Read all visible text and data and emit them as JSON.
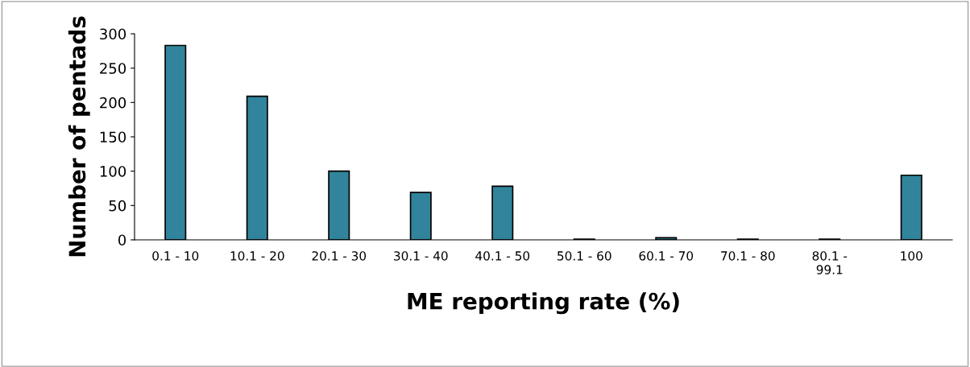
{
  "chart_data": {
    "type": "bar",
    "xlabel": "ME reporting rate (%)",
    "ylabel": "Number of pentads",
    "categories": [
      "0.1 - 10",
      "10.1 - 20",
      "20.1 - 30",
      "30.1 - 40",
      "40.1 - 50",
      "50.1 - 60",
      "60.1 - 70",
      "70.1 - 80",
      "80.1 -\n99.1",
      "100"
    ],
    "values": [
      283,
      209,
      100,
      69,
      78,
      1,
      3,
      1,
      1,
      94
    ],
    "color": "#31849b",
    "ylim": [
      0,
      300
    ],
    "yticks": [
      0,
      50,
      100,
      150,
      200,
      250,
      300
    ],
    "grid": false,
    "legend": false
  }
}
